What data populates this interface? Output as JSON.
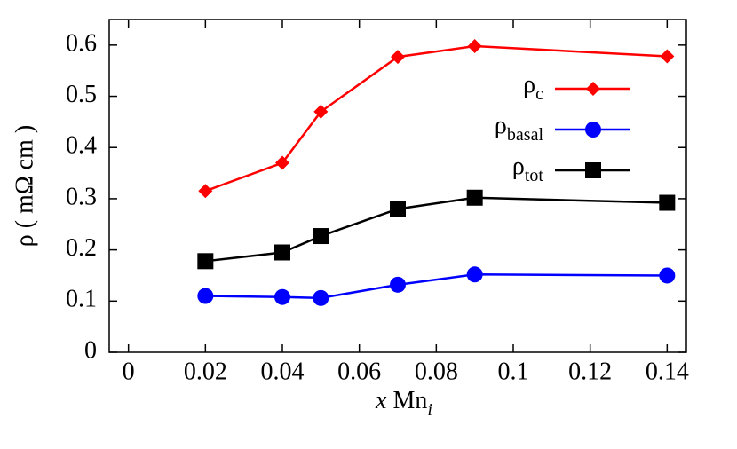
{
  "chart_data": {
    "type": "line",
    "x_label": "x Mni",
    "y_label": "ρ ( mΩ cm )",
    "x": [
      0.02,
      0.04,
      0.05,
      0.07,
      0.09,
      0.14
    ],
    "series": [
      {
        "name": "ρc",
        "color": "#ff0000",
        "marker": "diamond",
        "values": [
          0.315,
          0.37,
          0.47,
          0.577,
          0.598,
          0.578
        ]
      },
      {
        "name": "ρbasal",
        "color": "#0000ff",
        "marker": "circle",
        "values": [
          0.11,
          0.108,
          0.106,
          0.132,
          0.152,
          0.15
        ]
      },
      {
        "name": "ρtot",
        "color": "#000000",
        "marker": "square",
        "values": [
          0.178,
          0.195,
          0.227,
          0.28,
          0.302,
          0.292
        ]
      }
    ],
    "xlim": [
      -0.005,
      0.145
    ],
    "ylim": [
      0,
      0.65
    ],
    "xticks": [
      0,
      0.02,
      0.04,
      0.06,
      0.08,
      0.1,
      0.12,
      0.14
    ],
    "yticks": [
      0,
      0.1,
      0.2,
      0.3,
      0.4,
      0.5,
      0.6
    ],
    "legend": "top-right"
  }
}
